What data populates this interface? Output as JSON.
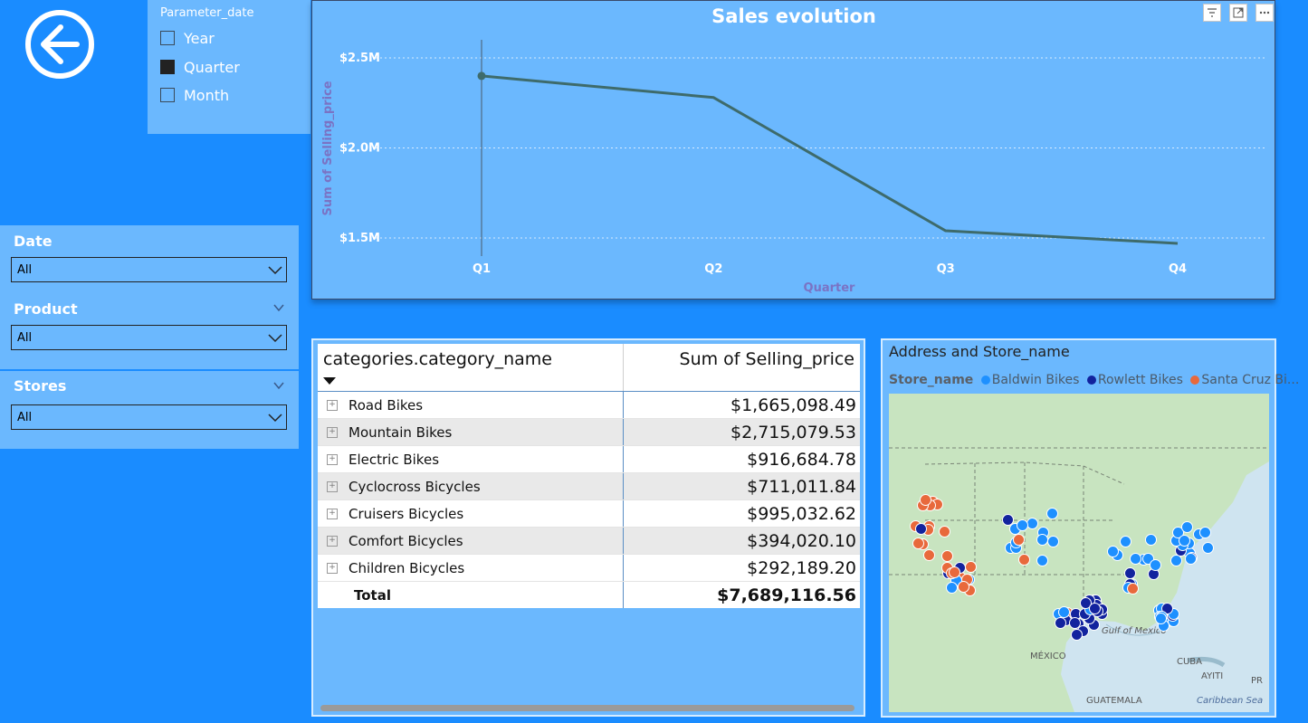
{
  "back_button": {
    "icon": "arrow-left-icon",
    "label": ""
  },
  "parameter": {
    "title": "Parameter_date",
    "options": [
      {
        "label": "Year",
        "checked": false
      },
      {
        "label": "Quarter",
        "checked": true
      },
      {
        "label": "Month",
        "checked": false
      }
    ]
  },
  "slicers": {
    "date": {
      "title": "Date",
      "value": "All"
    },
    "product": {
      "title": "Product",
      "value": "All"
    },
    "stores": {
      "title": "Stores",
      "value": "All"
    }
  },
  "chart_data": {
    "type": "line",
    "title": "Sales evolution",
    "xlabel": "Quarter",
    "ylabel": "Sum of Selling_price",
    "categories": [
      "Q1",
      "Q2",
      "Q3",
      "Q4"
    ],
    "values": [
      2.4,
      2.28,
      1.54,
      1.47
    ],
    "y_unit": "M",
    "ylim": [
      1.5,
      2.5
    ],
    "y_ticks": [
      "$2.5M",
      "$2.0M",
      "$1.5M"
    ],
    "grid": true,
    "line_color": "#3e6b6b",
    "highlight_index": 0
  },
  "table": {
    "columns": [
      "categories.category_name",
      "Sum of Selling_price"
    ],
    "rows": [
      {
        "category": "Road Bikes",
        "value": "$1,665,098.49"
      },
      {
        "category": "Mountain Bikes",
        "value": "$2,715,079.53"
      },
      {
        "category": "Electric Bikes",
        "value": "$916,684.78"
      },
      {
        "category": "Cyclocross Bicycles",
        "value": "$711,011.84"
      },
      {
        "category": "Cruisers Bicycles",
        "value": "$995,032.62"
      },
      {
        "category": "Comfort Bicycles",
        "value": "$394,020.10"
      },
      {
        "category": "Children Bicycles",
        "value": "$292,189.20"
      }
    ],
    "total_label": "Total",
    "total_value": "$7,689,116.56"
  },
  "map": {
    "title": "Address and Store_name",
    "legend_title": "Store_name",
    "legend": [
      {
        "name": "Baldwin Bikes",
        "color": "#1e90ff"
      },
      {
        "name": "Rowlett Bikes",
        "color": "#12239e"
      },
      {
        "name": "Santa Cruz Bi...",
        "color": "#e8693c"
      }
    ],
    "labels": {
      "gulf": "Gulf of Mexico",
      "mexico": "MÉXICO",
      "cuba": "CUBA",
      "haiti": "AYITI",
      "pr": "PR",
      "guatemala": "GUATEMALA",
      "caribbean": "Caribbean Sea"
    }
  },
  "colors": {
    "background": "#1a8cff",
    "panel": "#6bb8fe",
    "axis_text": "#ffffff",
    "axis_title": "#7a73c4"
  }
}
